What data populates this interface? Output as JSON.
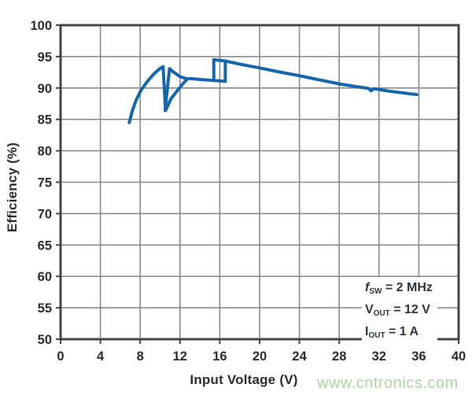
{
  "watermark": {
    "text": "www.cntronics.com",
    "color": "#a9d8a1"
  },
  "chart_data": {
    "type": "line",
    "title": "",
    "xlabel": "Input Voltage (V)",
    "ylabel": "Efficiency (%)",
    "xlim": [
      0,
      40
    ],
    "ylim": [
      50,
      100
    ],
    "xticks": [
      0,
      4,
      8,
      12,
      16,
      20,
      24,
      28,
      32,
      36,
      40
    ],
    "yticks": [
      50,
      55,
      60,
      65,
      70,
      75,
      80,
      85,
      90,
      95,
      100
    ],
    "grid": true,
    "legend": false,
    "annotation": {
      "color": "#2c3542",
      "lines": [
        {
          "main": "f",
          "sub": "SW",
          "rest": " = 2 MHz"
        },
        {
          "main": "V",
          "sub": "OUT",
          "rest": " = 12 V"
        },
        {
          "main": "I",
          "sub": "OUT",
          "rest": " = 1 A"
        }
      ]
    },
    "series": [
      {
        "name": "Efficiency vs Input Voltage",
        "color": "#1565af",
        "line_width": 4,
        "segments": [
          [
            [
              6.9,
              84.5
            ],
            [
              7.2,
              86.3
            ],
            [
              7.6,
              88.1
            ],
            [
              8.1,
              89.7
            ],
            [
              8.7,
              91.0
            ],
            [
              9.3,
              92.1
            ],
            [
              9.9,
              93.0
            ],
            [
              10.3,
              93.4
            ],
            [
              10.55,
              86.4
            ],
            [
              11.1,
              88.3
            ],
            [
              11.7,
              89.5
            ],
            [
              12.2,
              90.5
            ],
            [
              12.7,
              91.4
            ],
            [
              13.0,
              91.5
            ],
            [
              14.0,
              91.35
            ],
            [
              15.4,
              91.2
            ],
            [
              16.55,
              91.05
            ],
            [
              16.55,
              94.3
            ],
            [
              18.0,
              93.8
            ],
            [
              20.0,
              93.2
            ],
            [
              22.0,
              92.55
            ],
            [
              24.0,
              91.95
            ],
            [
              26.0,
              91.3
            ],
            [
              28.0,
              90.65
            ],
            [
              30.0,
              90.15
            ],
            [
              30.9,
              89.95
            ],
            [
              31.2,
              89.55
            ],
            [
              31.5,
              89.9
            ],
            [
              33.0,
              89.5
            ],
            [
              35.0,
              89.1
            ],
            [
              35.8,
              88.95
            ]
          ],
          [
            [
              10.5,
              86.4
            ],
            [
              10.95,
              93.1
            ],
            [
              11.3,
              92.6
            ],
            [
              12.0,
              91.8
            ],
            [
              12.7,
              91.45
            ]
          ],
          [
            [
              15.4,
              91.2
            ],
            [
              15.4,
              94.5
            ],
            [
              16.55,
              94.3
            ]
          ]
        ]
      }
    ],
    "colors": {
      "grid": "#8b8b8b",
      "frame": "#454545",
      "tick_label": "#2d2d2d",
      "axis_label": "#2d2d2d",
      "background": "#ffffff"
    }
  }
}
